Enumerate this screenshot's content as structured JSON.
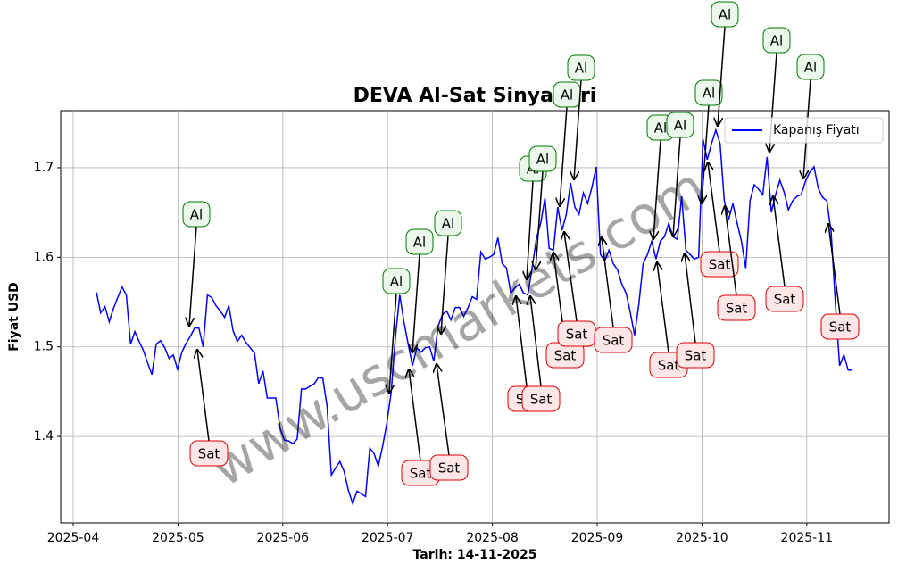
{
  "chart_data": {
    "type": "line",
    "title": "DEVA Al-Sat Sinyalleri",
    "x_label": "Tarih: 14-11-2025",
    "y_label": "Fiyat USD",
    "watermark": "www.uscmarkets.com",
    "legend_position": "upper right",
    "grid": true,
    "xticks": [
      "2025-04",
      "2025-05",
      "2025-06",
      "2025-07",
      "2025-08",
      "2025-09",
      "2025-10",
      "2025-11"
    ],
    "ylim": [
      1.3035,
      1.7637
    ],
    "yticks": [
      1.4,
      1.5,
      1.6,
      1.7
    ],
    "series": [
      {
        "name": "Kapanış Fiyatı",
        "color": "#0000ff",
        "values": [
          1.561,
          1.538,
          1.545,
          1.528,
          1.543,
          1.555,
          1.567,
          1.558,
          1.503,
          1.517,
          1.506,
          1.496,
          1.482,
          1.469,
          1.503,
          1.507,
          1.499,
          1.487,
          1.491,
          1.475,
          1.494,
          1.504,
          1.512,
          1.521,
          1.521,
          1.5,
          1.558,
          1.555,
          1.546,
          1.54,
          1.533,
          1.546,
          1.518,
          1.506,
          1.513,
          1.505,
          1.499,
          1.493,
          1.459,
          1.473,
          1.443,
          1.443,
          1.443,
          1.409,
          1.396,
          1.395,
          1.392,
          1.397,
          1.453,
          1.453,
          1.456,
          1.459,
          1.466,
          1.465,
          1.434,
          1.357,
          1.365,
          1.372,
          1.361,
          1.34,
          1.325,
          1.339,
          1.336,
          1.333,
          1.387,
          1.381,
          1.367,
          1.389,
          1.415,
          1.449,
          1.511,
          1.558,
          1.528,
          1.503,
          1.479,
          1.499,
          1.494,
          1.499,
          1.5,
          1.484,
          1.523,
          1.536,
          1.54,
          1.53,
          1.544,
          1.544,
          1.534,
          1.544,
          1.556,
          1.553,
          1.606,
          1.598,
          1.6,
          1.603,
          1.622,
          1.593,
          1.588,
          1.56,
          1.566,
          1.57,
          1.56,
          1.558,
          1.588,
          1.621,
          1.638,
          1.666,
          1.61,
          1.608,
          1.656,
          1.63,
          1.648,
          1.683,
          1.656,
          1.648,
          1.672,
          1.66,
          1.678,
          1.701,
          1.603,
          1.596,
          1.608,
          1.593,
          1.586,
          1.57,
          1.56,
          1.538,
          1.513,
          1.548,
          1.593,
          1.603,
          1.618,
          1.598,
          1.618,
          1.623,
          1.638,
          1.623,
          1.62,
          1.668,
          1.608,
          1.603,
          1.598,
          1.6,
          1.732,
          1.709,
          1.727,
          1.742,
          1.727,
          1.663,
          1.642,
          1.66,
          1.638,
          1.618,
          1.588,
          1.663,
          1.681,
          1.676,
          1.67,
          1.712,
          1.65,
          1.67,
          1.686,
          1.673,
          1.653,
          1.663,
          1.668,
          1.67,
          1.685,
          1.695,
          1.701,
          1.677,
          1.667,
          1.663,
          1.628,
          1.548,
          1.479,
          1.491,
          1.474,
          1.474
        ]
      }
    ],
    "annotations": [
      "Al",
      "Sat",
      "Al",
      "Sat",
      "Al",
      "Sat",
      "Al",
      "Sat",
      "Sat",
      "Al",
      "Al",
      "Sat",
      "Sat",
      "Al",
      "Al",
      "Sat",
      "Al",
      "Sat",
      "Al",
      "Sat",
      "Al",
      "Sat",
      "Al",
      "Sat",
      "Al",
      "Sat",
      "Al",
      "Sat"
    ]
  }
}
